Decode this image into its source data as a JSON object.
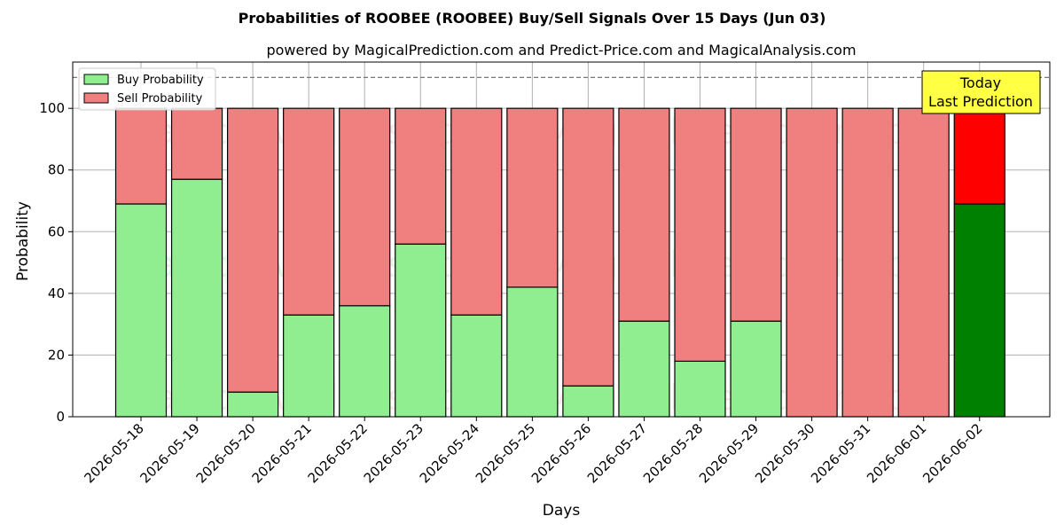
{
  "chart_data": {
    "type": "bar",
    "stacked": true,
    "title": "Probabilities of ROOBEE (ROOBEE) Buy/Sell Signals Over 15 Days (Jun 03)",
    "subtitle": "powered by MagicalPrediction.com and Predict-Price.com and MagicalAnalysis.com",
    "xlabel": "Days",
    "ylabel": "Probability",
    "ylim": [
      0,
      115
    ],
    "yticks": [
      0,
      20,
      40,
      60,
      80,
      100
    ],
    "grid": true,
    "legend_position": "top-left",
    "reference_line": 110,
    "categories": [
      "2026-05-18",
      "2026-05-19",
      "2026-05-20",
      "2026-05-21",
      "2026-05-22",
      "2026-05-23",
      "2026-05-24",
      "2026-05-25",
      "2026-05-26",
      "2026-05-27",
      "2026-05-28",
      "2026-05-29",
      "2026-05-30",
      "2026-05-31",
      "2026-06-01",
      "2026-06-02"
    ],
    "series": [
      {
        "name": "Buy Probability",
        "color": "#90ee90",
        "highlight_color": "#008000",
        "values": [
          69,
          77,
          8,
          33,
          36,
          56,
          33,
          42,
          10,
          31,
          18,
          31,
          0,
          0,
          0,
          69
        ]
      },
      {
        "name": "Sell Probability",
        "color": "#f08080",
        "highlight_color": "#ff0000",
        "values": [
          31,
          23,
          92,
          67,
          64,
          44,
          67,
          58,
          90,
          69,
          82,
          69,
          100,
          100,
          100,
          31
        ]
      }
    ],
    "highlight_index": 15,
    "annotation": {
      "lines": [
        "Today",
        "Last Prediction"
      ],
      "background": "#ffff44"
    },
    "watermarks": [
      "MagicalAnalysis.com",
      "MagicalPrediction.com"
    ]
  }
}
